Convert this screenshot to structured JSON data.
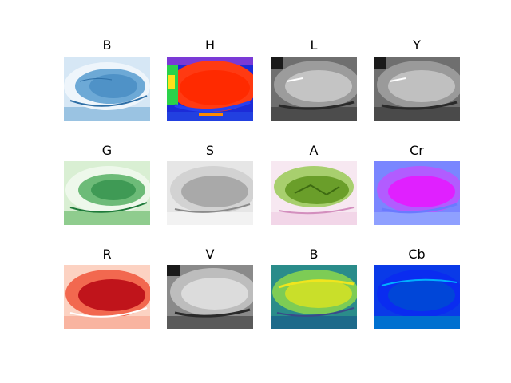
{
  "panels": [
    {
      "title": "B",
      "colormap": "Blues"
    },
    {
      "title": "H",
      "colormap": "jet"
    },
    {
      "title": "L",
      "colormap": "gray"
    },
    {
      "title": "Y",
      "colormap": "gray"
    },
    {
      "title": "G",
      "colormap": "Greens"
    },
    {
      "title": "S",
      "colormap": "gray_r"
    },
    {
      "title": "A",
      "colormap": "PiYG"
    },
    {
      "title": "Cr",
      "colormap": "cool"
    },
    {
      "title": "R",
      "colormap": "Reds"
    },
    {
      "title": "V",
      "colormap": "gray"
    },
    {
      "title": "B",
      "colormap": "viridis"
    },
    {
      "title": "Cb",
      "colormap": "winter"
    }
  ]
}
